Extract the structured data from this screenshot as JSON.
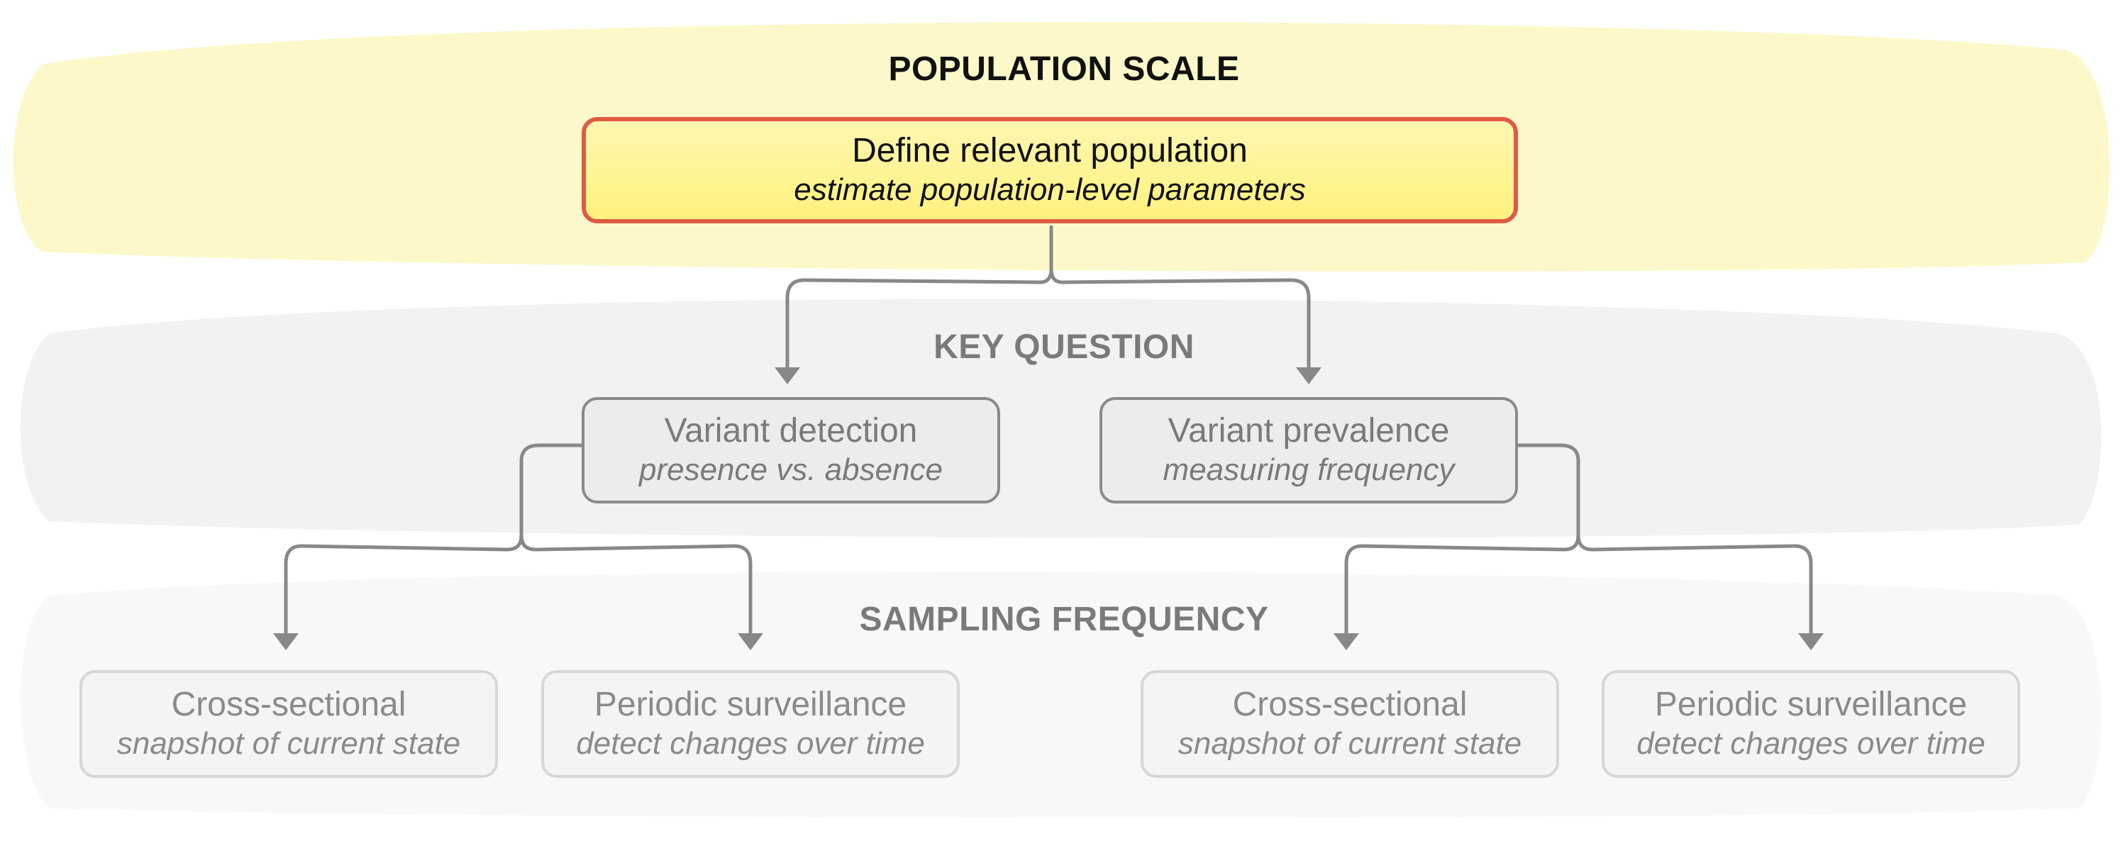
{
  "bands": {
    "population": {
      "title": "POPULATION SCALE",
      "color": "#fdf7c4"
    },
    "question": {
      "title": "KEY QUESTION",
      "color": "#f3f3f3"
    },
    "sampling": {
      "title": "SAMPLING FREQUENCY",
      "color": "#f8f8f8"
    }
  },
  "top_node": {
    "title": "Define relevant population",
    "subtitle": "estimate population-level parameters"
  },
  "question_nodes": [
    {
      "title": "Variant detection",
      "subtitle": "presence vs. absence"
    },
    {
      "title": "Variant prevalence",
      "subtitle": "measuring frequency"
    }
  ],
  "sampling_nodes": [
    {
      "title": "Cross-sectional",
      "subtitle": "snapshot of current state"
    },
    {
      "title": "Periodic surveillance",
      "subtitle": "detect changes over time"
    },
    {
      "title": "Cross-sectional",
      "subtitle": "snapshot of current state"
    },
    {
      "title": "Periodic surveillance",
      "subtitle": "detect changes over time"
    }
  ],
  "colors": {
    "highlight_border": "#e05a44",
    "highlight_fill": "#fff27e",
    "connector": "#888888"
  }
}
